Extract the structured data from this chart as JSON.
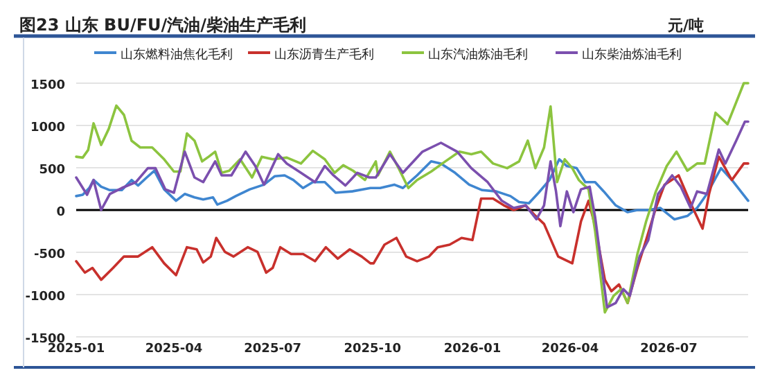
{
  "chart_data": {
    "type": "line",
    "title": "图23  山东 BU/FU/汽油/柴油生产毛利",
    "ylabel": "元/吨",
    "xlim": [
      "2025-01-01",
      "2026-09-12"
    ],
    "xticks": [
      {
        "value": "2025-01-01",
        "label": "2025-01"
      },
      {
        "value": "2025-04-01",
        "label": "2025-04"
      },
      {
        "value": "2025-07-01",
        "label": "2025-07"
      },
      {
        "value": "2025-10-01",
        "label": "2025-10"
      },
      {
        "value": "2026-01-01",
        "label": "2026-01"
      },
      {
        "value": "2026-04-01",
        "label": "2026-04"
      },
      {
        "value": "2026-07-01",
        "label": "2026-07"
      }
    ],
    "ylim": [
      -1500,
      1500
    ],
    "yticks": [
      -1500,
      -1000,
      -500,
      0,
      500,
      1000,
      1500
    ],
    "grid": "y",
    "legend": "top",
    "marker": "none",
    "line_style": "solid",
    "ref_lines": [
      {
        "axis": "y",
        "value": 0,
        "color": "#000000"
      }
    ],
    "series": [
      {
        "name": "山东燃料油焦化毛利",
        "color": "#3f86d0",
        "x": [
          "2025-01-01",
          "2025-01-07",
          "2025-01-13",
          "2025-01-17",
          "2025-01-24",
          "2025-02-01",
          "2025-02-12",
          "2025-02-21",
          "2025-02-27",
          "2025-03-07",
          "2025-03-14",
          "2025-03-23",
          "2025-04-03",
          "2025-04-11",
          "2025-04-20",
          "2025-04-28",
          "2025-05-07",
          "2025-05-11",
          "2025-05-20",
          "2025-05-28",
          "2025-06-10",
          "2025-06-23",
          "2025-07-03",
          "2025-07-12",
          "2025-07-20",
          "2025-07-29",
          "2025-08-07",
          "2025-08-18",
          "2025-08-28",
          "2025-09-12",
          "2025-09-29",
          "2025-10-08",
          "2025-10-21",
          "2025-10-29",
          "2025-11-11",
          "2025-11-24",
          "2025-12-03",
          "2025-12-16",
          "2025-12-29",
          "2026-01-10",
          "2026-01-23",
          "2026-02-05",
          "2026-02-13",
          "2026-02-22",
          "2026-03-03",
          "2026-03-13",
          "2026-03-22",
          "2026-03-29",
          "2026-04-07",
          "2026-04-15",
          "2026-04-24",
          "2026-05-02",
          "2026-05-13",
          "2026-05-24",
          "2026-06-02",
          "2026-06-12",
          "2026-06-23",
          "2026-07-06",
          "2026-07-18",
          "2026-07-27",
          "2026-08-05",
          "2026-08-18",
          "2026-08-28",
          "2026-09-12"
        ],
        "values": [
          165,
          180,
          260,
          355,
          275,
          235,
          235,
          355,
          290,
          385,
          465,
          245,
          110,
          190,
          150,
          125,
          150,
          65,
          110,
          165,
          245,
          300,
          400,
          410,
          355,
          260,
          330,
          330,
          205,
          220,
          260,
          260,
          300,
          260,
          410,
          575,
          550,
          440,
          300,
          235,
          220,
          165,
          95,
          80,
          205,
          355,
          600,
          520,
          495,
          330,
          330,
          220,
          55,
          -25,
          0,
          0,
          25,
          -110,
          -70,
          25,
          190,
          495,
          355,
          110
        ]
      },
      {
        "name": "山东沥青生产毛利",
        "color": "#c8302c",
        "x": [
          "2025-01-01",
          "2025-01-09",
          "2025-01-16",
          "2025-01-24",
          "2025-02-04",
          "2025-02-14",
          "2025-02-27",
          "2025-03-12",
          "2025-03-23",
          "2025-04-03",
          "2025-04-13",
          "2025-04-22",
          "2025-04-28",
          "2025-05-05",
          "2025-05-10",
          "2025-05-18",
          "2025-05-26",
          "2025-06-08",
          "2025-06-17",
          "2025-06-25",
          "2025-07-01",
          "2025-07-08",
          "2025-07-18",
          "2025-07-29",
          "2025-08-09",
          "2025-08-19",
          "2025-08-30",
          "2025-09-10",
          "2025-09-21",
          "2025-09-29",
          "2025-10-02",
          "2025-10-12",
          "2025-10-23",
          "2025-11-01",
          "2025-11-11",
          "2025-11-22",
          "2025-11-30",
          "2025-12-11",
          "2025-12-22",
          "2026-01-01",
          "2026-01-09",
          "2026-01-20",
          "2026-01-30",
          "2026-02-08",
          "2026-02-19",
          "2026-02-27",
          "2026-03-08",
          "2026-03-21",
          "2026-04-03",
          "2026-04-11",
          "2026-04-18",
          "2026-04-24",
          "2026-05-03",
          "2026-05-09",
          "2026-05-16",
          "2026-05-24",
          "2026-06-02",
          "2026-06-10",
          "2026-06-19",
          "2026-06-27",
          "2026-07-10",
          "2026-07-21",
          "2026-08-01",
          "2026-08-07",
          "2026-08-16",
          "2026-08-28",
          "2026-09-08",
          "2026-09-12"
        ],
        "values": [
          -605,
          -740,
          -685,
          -825,
          -685,
          -550,
          -550,
          -440,
          -630,
          -770,
          -440,
          -465,
          -620,
          -550,
          -330,
          -495,
          -550,
          -440,
          -495,
          -740,
          -685,
          -440,
          -520,
          -520,
          -605,
          -440,
          -575,
          -465,
          -550,
          -630,
          -630,
          -410,
          -330,
          -550,
          -605,
          -550,
          -440,
          -410,
          -330,
          -355,
          135,
          135,
          55,
          0,
          55,
          -55,
          -165,
          -550,
          -630,
          -135,
          110,
          -190,
          -825,
          -960,
          -880,
          -1100,
          -685,
          -355,
          25,
          300,
          410,
          80,
          -220,
          190,
          630,
          355,
          550,
          550
        ]
      },
      {
        "name": "山东汽油炼油毛利",
        "color": "#8cc43f",
        "x": [
          "2025-01-01",
          "2025-01-07",
          "2025-01-12",
          "2025-01-17",
          "2025-01-24",
          "2025-01-31",
          "2025-02-07",
          "2025-02-14",
          "2025-02-21",
          "2025-03-01",
          "2025-03-12",
          "2025-03-23",
          "2025-04-01",
          "2025-04-07",
          "2025-04-13",
          "2025-04-20",
          "2025-04-27",
          "2025-05-03",
          "2025-05-09",
          "2025-05-15",
          "2025-05-22",
          "2025-06-01",
          "2025-06-12",
          "2025-06-21",
          "2025-07-01",
          "2025-07-14",
          "2025-07-27",
          "2025-08-07",
          "2025-08-18",
          "2025-08-27",
          "2025-09-04",
          "2025-09-13",
          "2025-09-24",
          "2025-10-04",
          "2025-10-06",
          "2025-10-17",
          "2025-10-25",
          "2025-11-03",
          "2025-11-11",
          "2025-11-24",
          "2025-12-07",
          "2025-12-20",
          "2025-12-31",
          "2026-01-09",
          "2026-01-20",
          "2026-02-02",
          "2026-02-13",
          "2026-02-21",
          "2026-02-28",
          "2026-03-08",
          "2026-03-14",
          "2026-03-20",
          "2026-03-27",
          "2026-04-03",
          "2026-04-09",
          "2026-04-18",
          "2026-04-24",
          "2026-05-03",
          "2026-05-11",
          "2026-05-18",
          "2026-05-24",
          "2026-06-02",
          "2026-06-10",
          "2026-06-19",
          "2026-06-29",
          "2026-07-08",
          "2026-07-18",
          "2026-07-27",
          "2026-08-03",
          "2026-08-13",
          "2026-08-24",
          "2026-09-08",
          "2026-09-12"
        ],
        "values": [
          630,
          620,
          710,
          1025,
          770,
          960,
          1235,
          1125,
          820,
          740,
          740,
          600,
          455,
          455,
          905,
          820,
          575,
          630,
          690,
          440,
          465,
          600,
          385,
          630,
          600,
          620,
          550,
          700,
          600,
          440,
          530,
          465,
          355,
          575,
          410,
          690,
          495,
          260,
          355,
          455,
          575,
          690,
          660,
          690,
          550,
          495,
          575,
          820,
          495,
          740,
          1225,
          330,
          600,
          495,
          355,
          245,
          -245,
          -1210,
          -1015,
          -935,
          -1100,
          -520,
          -135,
          220,
          520,
          690,
          465,
          550,
          550,
          1150,
          1015,
          1500,
          1500
        ]
      },
      {
        "name": "山东柴油炼油毛利",
        "color": "#7b4fae",
        "x": [
          "2025-01-01",
          "2025-01-11",
          "2025-01-17",
          "2025-01-24",
          "2025-02-01",
          "2025-02-12",
          "2025-02-25",
          "2025-03-08",
          "2025-03-15",
          "2025-03-24",
          "2025-04-01",
          "2025-04-11",
          "2025-04-20",
          "2025-04-28",
          "2025-05-09",
          "2025-05-15",
          "2025-05-24",
          "2025-06-06",
          "2025-06-15",
          "2025-06-23",
          "2025-07-06",
          "2025-07-14",
          "2025-07-27",
          "2025-08-09",
          "2025-08-18",
          "2025-08-26",
          "2025-09-06",
          "2025-09-17",
          "2025-09-28",
          "2025-10-04",
          "2025-10-17",
          "2025-10-29",
          "2025-11-16",
          "2025-12-03",
          "2025-12-18",
          "2025-12-31",
          "2026-01-15",
          "2026-01-28",
          "2026-02-08",
          "2026-02-19",
          "2026-03-01",
          "2026-03-08",
          "2026-03-14",
          "2026-03-19",
          "2026-03-23",
          "2026-03-29",
          "2026-04-04",
          "2026-04-11",
          "2026-04-19",
          "2026-04-24",
          "2026-05-05",
          "2026-05-13",
          "2026-05-20",
          "2026-05-26",
          "2026-06-04",
          "2026-06-12",
          "2026-06-21",
          "2026-07-04",
          "2026-07-12",
          "2026-07-21",
          "2026-07-27",
          "2026-08-05",
          "2026-08-16",
          "2026-08-22",
          "2026-09-01",
          "2026-09-09",
          "2026-09-12"
        ],
        "values": [
          385,
          180,
          355,
          0,
          190,
          260,
          330,
          495,
          495,
          245,
          205,
          690,
          385,
          330,
          575,
          410,
          410,
          690,
          520,
          300,
          660,
          550,
          440,
          330,
          520,
          410,
          290,
          440,
          385,
          385,
          660,
          440,
          690,
          795,
          690,
          495,
          330,
          110,
          25,
          55,
          -110,
          55,
          575,
          220,
          -190,
          220,
          -25,
          245,
          275,
          -80,
          -1150,
          -1100,
          -935,
          -1015,
          -550,
          -355,
          190,
          410,
          275,
          25,
          220,
          190,
          715,
          550,
          820,
          1045,
          1045
        ]
      }
    ]
  }
}
